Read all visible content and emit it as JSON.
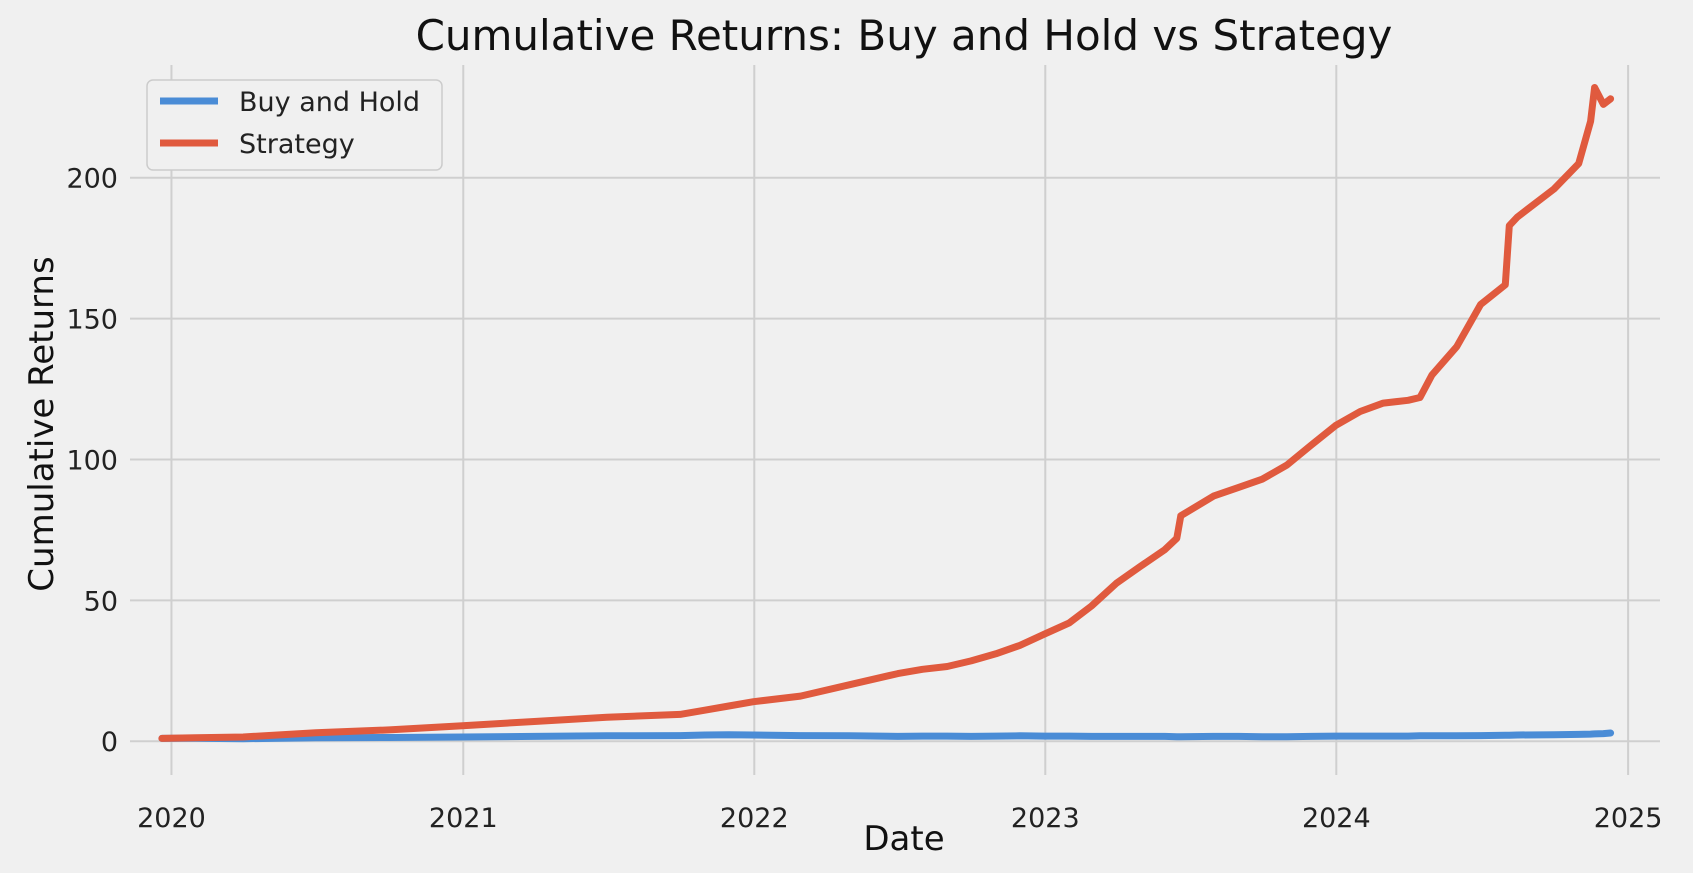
{
  "chart_data": {
    "type": "line",
    "title": "Cumulative Returns: Buy and Hold vs Strategy",
    "xlabel": "Date",
    "ylabel": "Cumulative Returns",
    "x_ticks": [
      "2020",
      "2021",
      "2022",
      "2023",
      "2024",
      "2025"
    ],
    "y_ticks": [
      "0",
      "50",
      "100",
      "150",
      "200"
    ],
    "xlim": [
      "2019-11-10",
      "2025-02-10"
    ],
    "ylim": [
      -12,
      240
    ],
    "grid": true,
    "legend_position": "top-left",
    "x": [
      "2019-12-20",
      "2020-01-31",
      "2020-03-31",
      "2020-06-30",
      "2020-09-30",
      "2020-12-31",
      "2021-03-31",
      "2021-06-30",
      "2021-09-30",
      "2021-10-31",
      "2021-11-30",
      "2021-12-31",
      "2022-02-28",
      "2022-04-30",
      "2022-06-30",
      "2022-07-31",
      "2022-08-31",
      "2022-09-30",
      "2022-10-31",
      "2022-11-30",
      "2022-12-31",
      "2023-01-31",
      "2023-02-28",
      "2023-03-31",
      "2023-04-30",
      "2023-05-31",
      "2023-06-15",
      "2023-06-20",
      "2023-07-31",
      "2023-08-31",
      "2023-09-30",
      "2023-10-31",
      "2023-11-30",
      "2023-12-31",
      "2024-01-31",
      "2024-02-29",
      "2024-03-31",
      "2024-04-15",
      "2024-04-30",
      "2024-05-31",
      "2024-06-30",
      "2024-07-31",
      "2024-08-05",
      "2024-08-15",
      "2024-09-30",
      "2024-10-31",
      "2024-11-15",
      "2024-11-20",
      "2024-12-01",
      "2024-12-10"
    ],
    "series": [
      {
        "name": "Buy and Hold",
        "color": "#4a8cd6",
        "values": [
          1.0,
          1.05,
          0.9,
          1.2,
          1.3,
          1.5,
          1.7,
          1.9,
          2.0,
          2.2,
          2.3,
          2.2,
          2.0,
          1.9,
          1.7,
          1.8,
          1.8,
          1.7,
          1.8,
          1.9,
          1.8,
          1.8,
          1.7,
          1.7,
          1.7,
          1.7,
          1.6,
          1.6,
          1.7,
          1.7,
          1.6,
          1.6,
          1.7,
          1.8,
          1.8,
          1.8,
          1.8,
          1.9,
          1.9,
          1.9,
          2.0,
          2.1,
          2.1,
          2.2,
          2.3,
          2.4,
          2.5,
          2.6,
          2.7,
          2.9
        ]
      },
      {
        "name": "Strategy",
        "color": "#e05a3e",
        "values": [
          1.0,
          1.2,
          1.5,
          3.0,
          4.0,
          5.5,
          7.0,
          8.5,
          9.5,
          11.0,
          12.5,
          14.0,
          16.0,
          20.0,
          24.0,
          25.5,
          26.5,
          28.5,
          31.0,
          34.0,
          38.0,
          42.0,
          48.0,
          56.0,
          62.0,
          68.0,
          72.0,
          80.0,
          87.0,
          90.0,
          93.0,
          98.0,
          105.0,
          112.0,
          117.0,
          120.0,
          121.0,
          122.0,
          130.0,
          140.0,
          155.0,
          162.0,
          183.0,
          186.0,
          196.0,
          205.0,
          220.0,
          232.0,
          226.0,
          228.0
        ]
      }
    ]
  }
}
